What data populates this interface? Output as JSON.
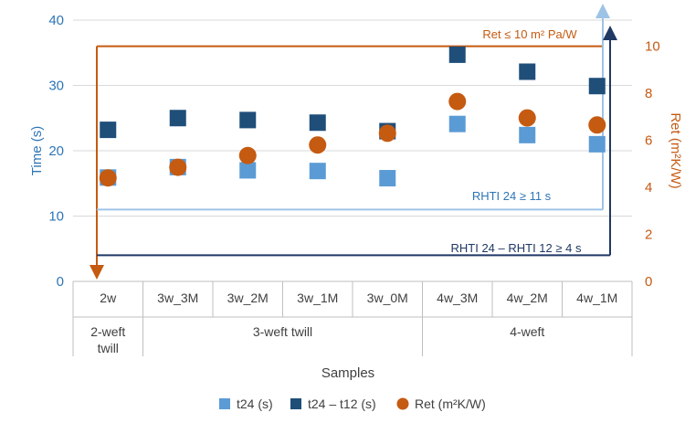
{
  "chart_data": {
    "type": "scatter",
    "xlabel": "Samples",
    "ylabel_left": "Time (s)",
    "ylabel_right": "Ret (m²K/W)",
    "ylim_left": [
      0,
      40
    ],
    "ylim_right": [
      0,
      11.11
    ],
    "yticks_left": [
      "0",
      "10",
      "20",
      "30",
      "40"
    ],
    "yticks_right": [
      "0",
      "2",
      "4",
      "6",
      "8",
      "10"
    ],
    "categories": [
      "2w",
      "3w_3M",
      "3w_2M",
      "3w_1M",
      "3w_0M",
      "4w_3M",
      "4w_2M",
      "4w_1M"
    ],
    "groups": [
      {
        "label_line1": "2-weft",
        "label_line2": "twill",
        "span": 1
      },
      {
        "label_line1": "3-weft twill",
        "label_line2": "",
        "span": 4
      },
      {
        "label_line1": "4-weft",
        "label_line2": "",
        "span": 3
      }
    ],
    "series": [
      {
        "name": "t24 (s)",
        "axis": "left",
        "marker": "square",
        "color": "#5b9bd5",
        "values": [
          15.9,
          17.5,
          17.0,
          16.9,
          15.8,
          24.1,
          22.4,
          21.0
        ]
      },
      {
        "name": "t24 – t12 (s)",
        "axis": "left",
        "marker": "square",
        "color": "#1f4e79",
        "values": [
          23.2,
          25.0,
          24.7,
          24.3,
          23.0,
          34.7,
          32.1,
          29.9
        ]
      },
      {
        "name": "Ret (m²K/W)",
        "axis": "right",
        "marker": "circle",
        "color": "#c55a11",
        "values": [
          4.4,
          4.85,
          5.35,
          5.8,
          6.3,
          7.65,
          6.95,
          6.65
        ]
      }
    ],
    "thresholds": [
      {
        "label": "Ret ≤ 10 m² Pa/W",
        "axis": "right",
        "value": 10,
        "color": "#c55a11"
      },
      {
        "label": "RHTI 24 ≥ 11 s",
        "axis": "left",
        "value": 11,
        "color": "#9dc3e6"
      },
      {
        "label": "RHTI 24 – RHTI 12 ≥ 4 s",
        "axis": "left",
        "value": 4,
        "color": "#1f3864"
      }
    ],
    "legend_position": "bottom"
  }
}
